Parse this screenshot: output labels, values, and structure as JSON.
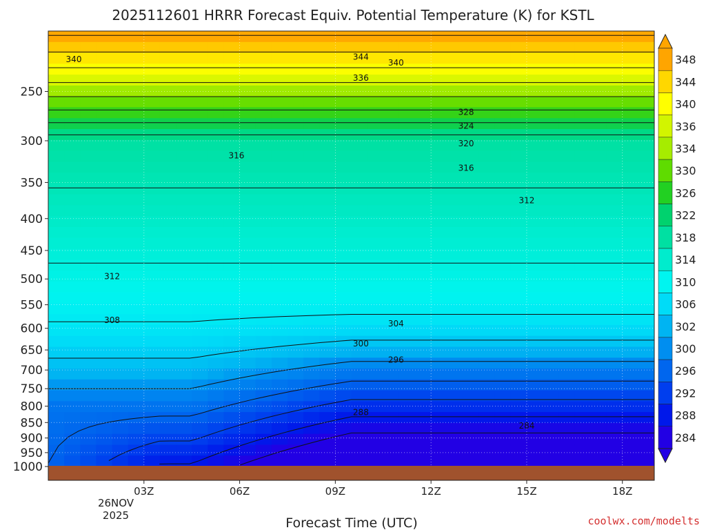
{
  "chart_data": {
    "type": "heatmap",
    "title": "2025112601 HRRR Forecast Equiv. Potential Temperature (K) for KSTL",
    "xlabel": "Forecast Time (UTC)",
    "ylabel": "",
    "x_ticks": [
      "03Z",
      "06Z",
      "09Z",
      "12Z",
      "15Z",
      "18Z"
    ],
    "x_tick_hours": [
      3,
      6,
      9,
      12,
      15,
      18
    ],
    "x_range_hours": [
      0,
      19
    ],
    "x_date_lines": [
      "26NOV",
      "2025"
    ],
    "y_ticks": [
      250,
      300,
      350,
      400,
      450,
      500,
      550,
      600,
      650,
      700,
      750,
      800,
      850,
      900,
      950,
      1000
    ],
    "y_range_hpa": [
      200,
      1000
    ],
    "y_axis": "log-pressure (inverted)",
    "grid": "dotted white",
    "surface_fill_color": "#a0522d",
    "colorbar": {
      "levels": [
        348,
        344,
        340,
        336,
        334,
        330,
        326,
        322,
        318,
        314,
        310,
        306,
        302,
        300,
        296,
        292,
        288,
        284
      ],
      "colors": [
        "#ffa500",
        "#ffd700",
        "#ffff00",
        "#d2f500",
        "#a6ec00",
        "#5fdc00",
        "#22d022",
        "#00d26e",
        "#00e0a2",
        "#00eccd",
        "#00f5f0",
        "#00dcf7",
        "#00b4f2",
        "#008ef0",
        "#0066ee",
        "#003eee",
        "#0018ea",
        "#2200e4"
      ],
      "extend": "both"
    },
    "contour_labels": [
      {
        "text": "340",
        "x": 0.8,
        "p": 222
      },
      {
        "text": "344",
        "x": 9.8,
        "p": 220
      },
      {
        "text": "340",
        "x": 10.9,
        "p": 225
      },
      {
        "text": "336",
        "x": 9.8,
        "p": 238
      },
      {
        "text": "328",
        "x": 13.1,
        "p": 270
      },
      {
        "text": "324",
        "x": 13.1,
        "p": 284
      },
      {
        "text": "320",
        "x": 13.1,
        "p": 303
      },
      {
        "text": "316",
        "x": 5.9,
        "p": 317
      },
      {
        "text": "316",
        "x": 13.1,
        "p": 332
      },
      {
        "text": "312",
        "x": 15.0,
        "p": 374
      },
      {
        "text": "312",
        "x": 2.0,
        "p": 495
      },
      {
        "text": "308",
        "x": 2.0,
        "p": 582
      },
      {
        "text": "304",
        "x": 10.9,
        "p": 590
      },
      {
        "text": "300",
        "x": 9.8,
        "p": 635
      },
      {
        "text": "296",
        "x": 10.9,
        "p": 674
      },
      {
        "text": "288",
        "x": 9.8,
        "p": 819
      },
      {
        "text": "284",
        "x": 15.0,
        "p": 860
      }
    ]
  },
  "credit": "coolwx.com/modelts"
}
